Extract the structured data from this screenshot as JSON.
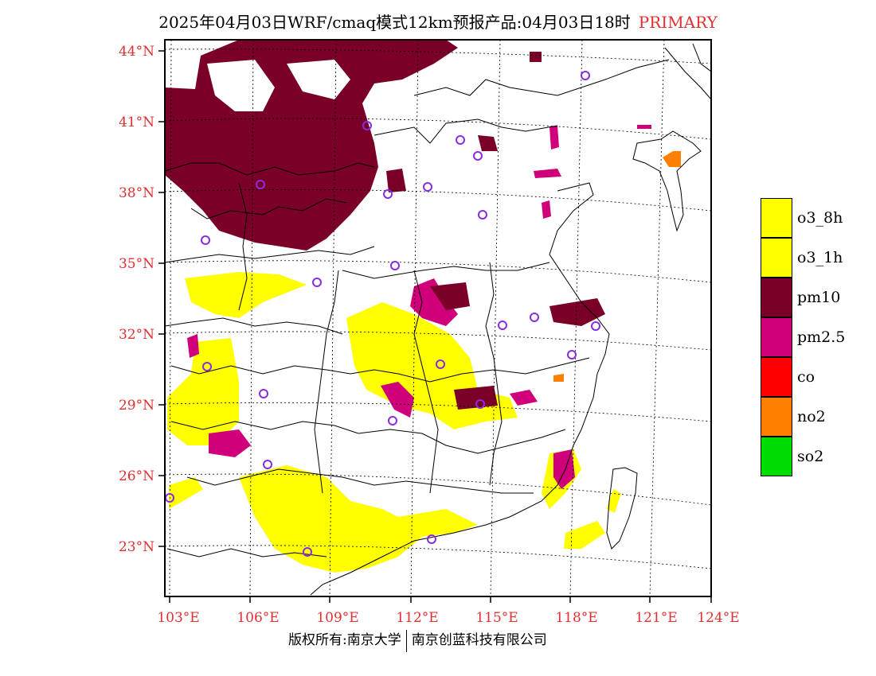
{
  "title": {
    "main": "2025年04月03日WRF/cmaq模式12km预报产品:04月03日18时",
    "tag": "PRIMARY"
  },
  "axes": {
    "lat_labels": [
      "44°N",
      "41°N",
      "38°N",
      "35°N",
      "32°N",
      "29°N",
      "26°N",
      "23°N"
    ],
    "lon_labels": [
      "103°E",
      "106°E",
      "109°E",
      "112°E",
      "115°E",
      "118°E",
      "121°E",
      "124°E"
    ]
  },
  "legend": [
    {
      "label": "o3_8h",
      "color": "#ffff00"
    },
    {
      "label": "o3_1h",
      "color": "#ffff00"
    },
    {
      "label": "pm10",
      "color": "#7b0028"
    },
    {
      "label": "pm2.5",
      "color": "#d0007a"
    },
    {
      "label": "co",
      "color": "#ff0000"
    },
    {
      "label": "no2",
      "color": "#ff7f00"
    },
    {
      "label": "so2",
      "color": "#00dd00"
    }
  ],
  "footer": {
    "left": "版权所有:南京大学",
    "right": "南京创蓝科技有限公司"
  },
  "colors": {
    "axis_label": "#e03030",
    "pm10": "#7b0028",
    "pm25": "#d0007a",
    "o3": "#ffff00",
    "no2": "#ff7f00",
    "station_circle": "#8a2be2"
  }
}
